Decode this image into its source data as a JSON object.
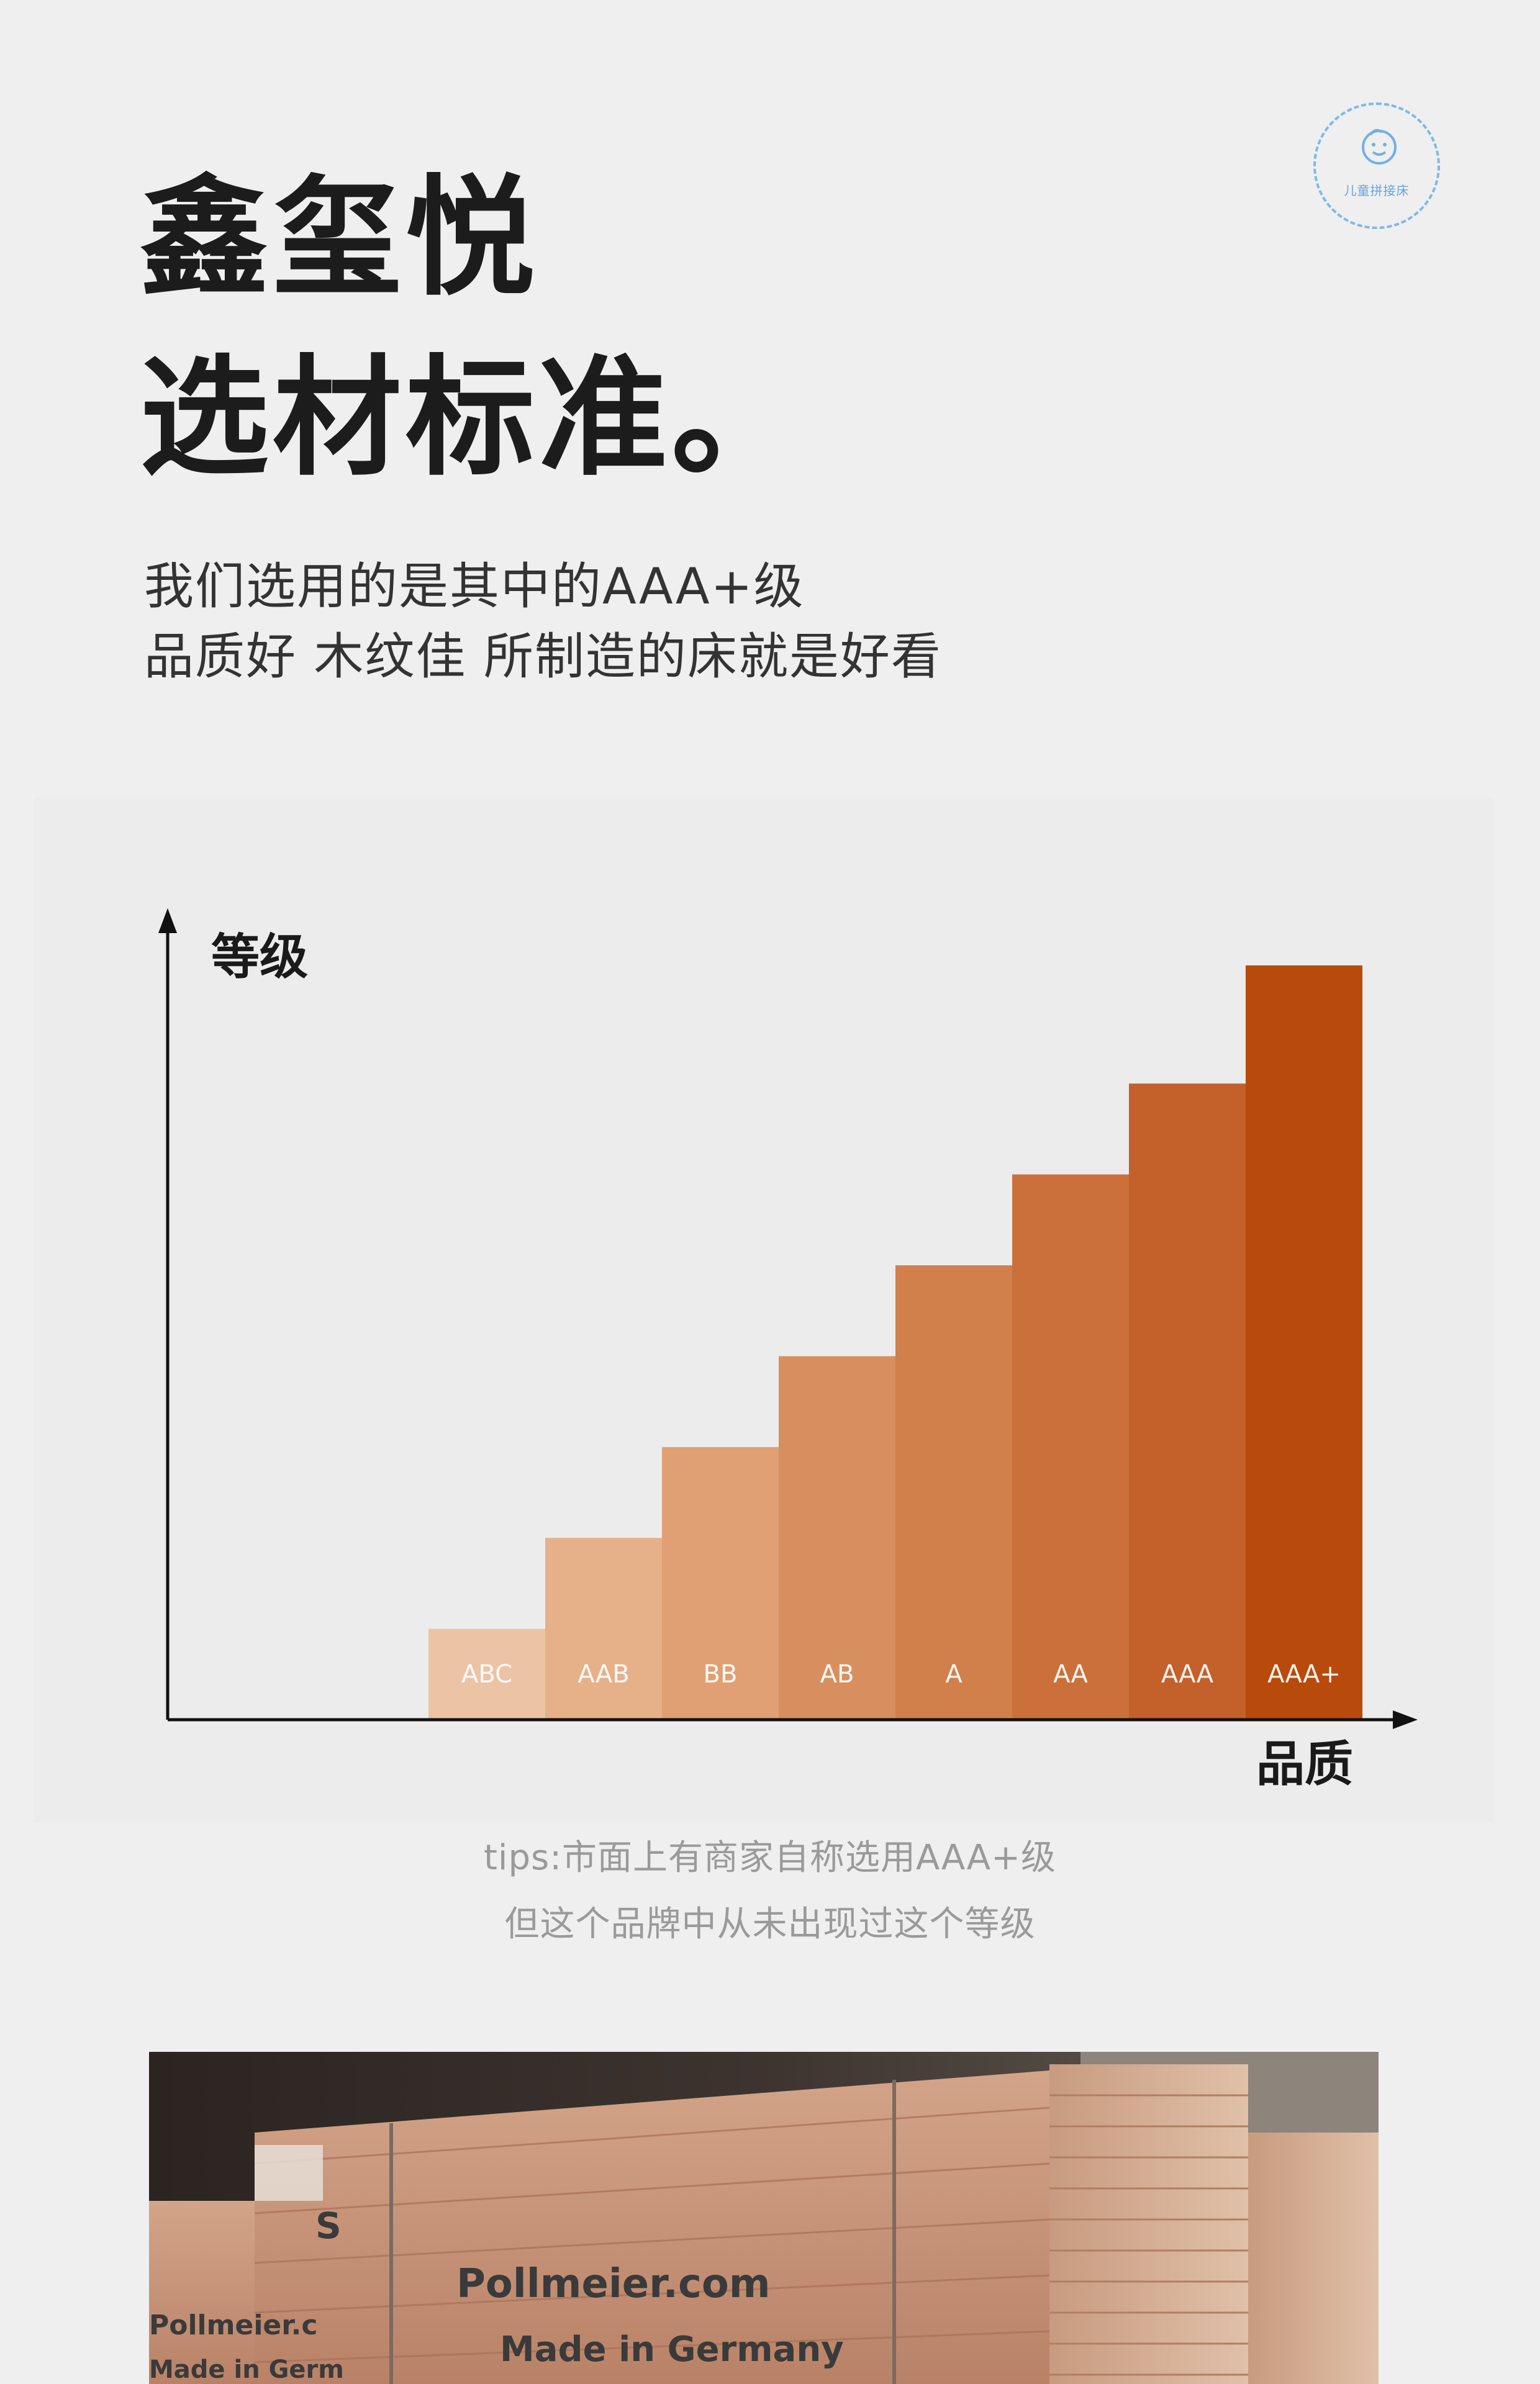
{
  "badge": {
    "label": "儿童拼接床"
  },
  "header": {
    "brand": "鑫玺悦",
    "section": "选材标准。",
    "subtitle_line1": "我们选用的是其中的AAA+级",
    "subtitle_line2": "品质好 木纹佳 所制造的床就是好看"
  },
  "chart_data": {
    "type": "bar",
    "ylabel": "等级",
    "xlabel": "品质",
    "categories": [
      "ABC",
      "AAB",
      "BB",
      "AB",
      "A",
      "AA",
      "AAA",
      "AAA+"
    ],
    "values": [
      1,
      2,
      3,
      4,
      5,
      6,
      7,
      8.3
    ],
    "colors": [
      "#ecc3a5",
      "#e6b089",
      "#e0a073",
      "#d88f5f",
      "#d2804b",
      "#cc703b",
      "#c4602a",
      "#b84a0c"
    ],
    "ylim": [
      0,
      8.3
    ],
    "grid": false,
    "legend": "none"
  },
  "tips": {
    "line1": "tips:市面上有商家自称选用AAA+级",
    "line2": "但这个品牌中从未出现过这个等级"
  },
  "photo": {
    "stamp_brand": "Pollmeier.com",
    "stamp_made": "Made in Germany",
    "stamp_letter": "S",
    "stamp_brand_left": "Pollmeier.c",
    "stamp_made_left": "Made in Germ"
  }
}
